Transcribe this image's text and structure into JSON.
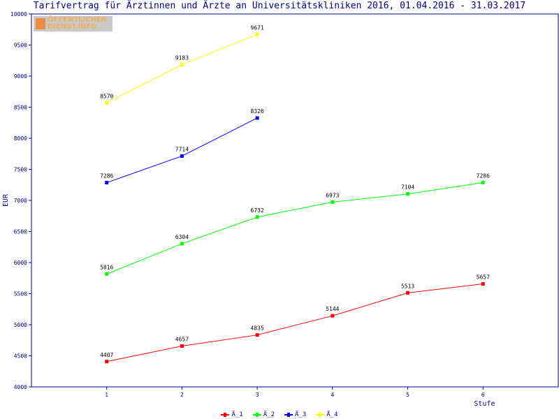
{
  "chart_data": {
    "type": "line",
    "title": "Tarifvertrag für Ärztinnen und Ärzte an Universitätskliniken 2016, 01.04.2016 - 31.03.2017",
    "xlabel": "Stufe",
    "ylabel": "EUR",
    "x": [
      1,
      2,
      3,
      4,
      5,
      6
    ],
    "xlim": [
      0,
      7
    ],
    "ylim": [
      4000,
      10000
    ],
    "yticks": [
      4000,
      4500,
      5000,
      5500,
      6000,
      6500,
      7000,
      7500,
      8000,
      8500,
      9000,
      9500,
      10000
    ],
    "grid": false,
    "legend_position": "bottom-center",
    "series": [
      {
        "name": "Ä_1",
        "color": "#ff0000",
        "x": [
          1,
          2,
          3,
          4,
          5,
          6
        ],
        "values": [
          4407,
          4657,
          4835,
          5144,
          5513,
          5657
        ]
      },
      {
        "name": "Ä_2",
        "color": "#00ff00",
        "x": [
          1,
          2,
          3,
          4,
          5,
          6
        ],
        "values": [
          5816,
          6304,
          6732,
          6973,
          7104,
          7286
        ]
      },
      {
        "name": "Ä_3",
        "color": "#0000ff",
        "x": [
          1,
          2,
          3
        ],
        "values": [
          7286,
          7714,
          8326
        ]
      },
      {
        "name": "Ä_4",
        "color": "#ffff00",
        "x": [
          1,
          2,
          3
        ],
        "values": [
          8570,
          9183,
          9671
        ]
      }
    ]
  },
  "watermark": {
    "line1": "ÖFFENTLICHER",
    "line2": "DIENST.INFO"
  },
  "colors": {
    "axis": "#000080",
    "background": "#ffffff"
  }
}
